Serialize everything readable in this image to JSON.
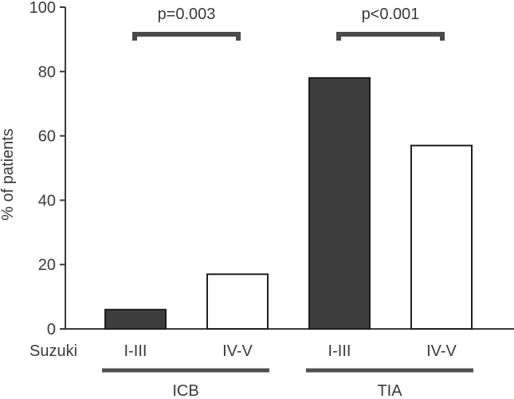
{
  "chart_data": {
    "type": "bar",
    "title": "",
    "xlabel": "",
    "ylabel": "% of patients",
    "ylim": [
      0,
      100
    ],
    "yticks": [
      0,
      20,
      40,
      60,
      80,
      100
    ],
    "row_label": "Suzuki",
    "groups": [
      {
        "name": "ICB",
        "p_value": "p=0.003",
        "bars": [
          {
            "label": "I-III",
            "value": 6,
            "fill": "#3d3d3d"
          },
          {
            "label": "IV-V",
            "value": 17,
            "fill": "#ffffff"
          }
        ]
      },
      {
        "name": "TIA",
        "p_value": "p<0.001",
        "bars": [
          {
            "label": "I-III",
            "value": 78,
            "fill": "#3d3d3d"
          },
          {
            "label": "IV-V",
            "value": 57,
            "fill": "#ffffff"
          }
        ]
      }
    ],
    "colors": {
      "axis": "#3a3a3a",
      "bar_outline": "#1f1f1f",
      "bracket": "#4a4a4a",
      "group_line": "#505050"
    }
  }
}
